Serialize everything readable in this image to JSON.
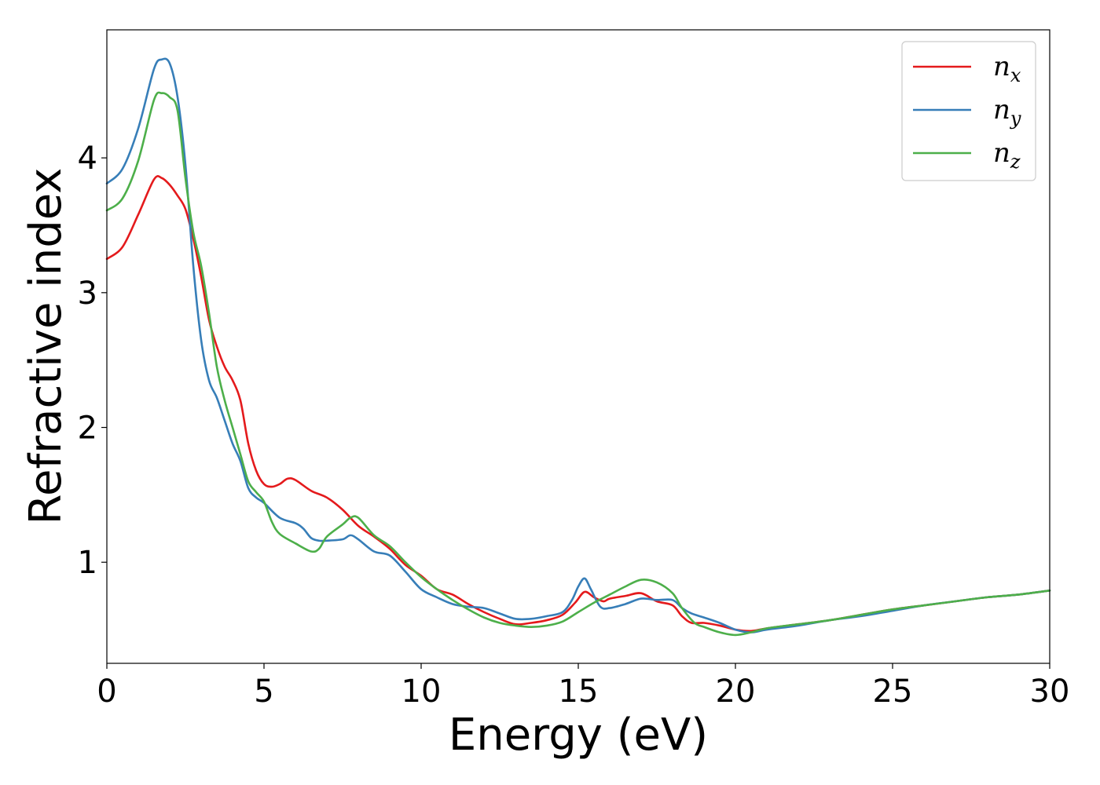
{
  "chart_data": {
    "type": "line",
    "xlabel": "Energy (eV)",
    "ylabel": "Refractive index",
    "xlim": [
      0,
      30
    ],
    "ylim": [
      0.25,
      4.95
    ],
    "x_ticks": [
      0,
      5,
      10,
      15,
      20,
      25,
      30
    ],
    "y_ticks": [
      1,
      2,
      3,
      4
    ],
    "x_tick_labels": [
      "0",
      "5",
      "10",
      "15",
      "20",
      "25",
      "30"
    ],
    "y_tick_labels": [
      "1",
      "2",
      "3",
      "4"
    ],
    "grid": false,
    "legend_position": "top-right",
    "series": [
      {
        "name": "n_x",
        "name_main": "n",
        "name_sub": "x",
        "color": "#e41a1c",
        "points": [
          [
            0,
            3.25
          ],
          [
            0.5,
            3.34
          ],
          [
            1.0,
            3.58
          ],
          [
            1.5,
            3.84
          ],
          [
            1.75,
            3.85
          ],
          [
            2.0,
            3.8
          ],
          [
            2.25,
            3.72
          ],
          [
            2.5,
            3.62
          ],
          [
            2.75,
            3.4
          ],
          [
            3.0,
            3.12
          ],
          [
            3.25,
            2.8
          ],
          [
            3.5,
            2.6
          ],
          [
            3.75,
            2.45
          ],
          [
            4.0,
            2.35
          ],
          [
            4.25,
            2.2
          ],
          [
            4.5,
            1.88
          ],
          [
            4.75,
            1.68
          ],
          [
            5.0,
            1.58
          ],
          [
            5.25,
            1.56
          ],
          [
            5.5,
            1.58
          ],
          [
            5.75,
            1.62
          ],
          [
            6.0,
            1.61
          ],
          [
            6.5,
            1.53
          ],
          [
            7.0,
            1.48
          ],
          [
            7.5,
            1.39
          ],
          [
            8.0,
            1.27
          ],
          [
            8.5,
            1.19
          ],
          [
            9.0,
            1.1
          ],
          [
            9.5,
            0.98
          ],
          [
            10.0,
            0.9
          ],
          [
            10.5,
            0.8
          ],
          [
            11.0,
            0.76
          ],
          [
            11.5,
            0.69
          ],
          [
            12.0,
            0.63
          ],
          [
            12.5,
            0.58
          ],
          [
            13.0,
            0.54
          ],
          [
            13.5,
            0.55
          ],
          [
            14.0,
            0.57
          ],
          [
            14.5,
            0.61
          ],
          [
            14.9,
            0.7
          ],
          [
            15.2,
            0.78
          ],
          [
            15.5,
            0.74
          ],
          [
            15.8,
            0.71
          ],
          [
            16.0,
            0.73
          ],
          [
            16.5,
            0.75
          ],
          [
            17.0,
            0.77
          ],
          [
            17.5,
            0.71
          ],
          [
            18.0,
            0.68
          ],
          [
            18.3,
            0.6
          ],
          [
            18.6,
            0.55
          ],
          [
            19.0,
            0.55
          ],
          [
            19.5,
            0.53
          ],
          [
            20.0,
            0.5
          ],
          [
            20.5,
            0.49
          ],
          [
            21.0,
            0.51
          ],
          [
            22.0,
            0.54
          ],
          [
            23.0,
            0.57
          ],
          [
            24.0,
            0.61
          ],
          [
            25.0,
            0.65
          ],
          [
            26.0,
            0.68
          ],
          [
            27.0,
            0.71
          ],
          [
            28.0,
            0.74
          ],
          [
            29.0,
            0.76
          ],
          [
            30.0,
            0.79
          ]
        ]
      },
      {
        "name": "n_y",
        "name_main": "n",
        "name_sub": "y",
        "color": "#377eb8",
        "points": [
          [
            0,
            3.81
          ],
          [
            0.5,
            3.92
          ],
          [
            1.0,
            4.22
          ],
          [
            1.5,
            4.66
          ],
          [
            1.75,
            4.73
          ],
          [
            2.0,
            4.7
          ],
          [
            2.25,
            4.45
          ],
          [
            2.5,
            3.95
          ],
          [
            2.75,
            3.2
          ],
          [
            3.0,
            2.65
          ],
          [
            3.25,
            2.35
          ],
          [
            3.5,
            2.22
          ],
          [
            3.75,
            2.05
          ],
          [
            4.0,
            1.88
          ],
          [
            4.25,
            1.75
          ],
          [
            4.5,
            1.55
          ],
          [
            4.75,
            1.48
          ],
          [
            5.0,
            1.44
          ],
          [
            5.5,
            1.33
          ],
          [
            6.0,
            1.29
          ],
          [
            6.25,
            1.25
          ],
          [
            6.5,
            1.18
          ],
          [
            6.75,
            1.16
          ],
          [
            7.0,
            1.16
          ],
          [
            7.5,
            1.17
          ],
          [
            7.75,
            1.2
          ],
          [
            8.0,
            1.17
          ],
          [
            8.5,
            1.08
          ],
          [
            9.0,
            1.05
          ],
          [
            9.5,
            0.93
          ],
          [
            10.0,
            0.8
          ],
          [
            10.5,
            0.74
          ],
          [
            11.0,
            0.69
          ],
          [
            11.5,
            0.67
          ],
          [
            12.0,
            0.66
          ],
          [
            12.5,
            0.62
          ],
          [
            13.0,
            0.58
          ],
          [
            13.5,
            0.58
          ],
          [
            14.0,
            0.6
          ],
          [
            14.5,
            0.63
          ],
          [
            14.8,
            0.72
          ],
          [
            15.0,
            0.82
          ],
          [
            15.2,
            0.88
          ],
          [
            15.4,
            0.8
          ],
          [
            15.7,
            0.67
          ],
          [
            16.0,
            0.66
          ],
          [
            16.5,
            0.69
          ],
          [
            17.0,
            0.73
          ],
          [
            17.5,
            0.72
          ],
          [
            18.0,
            0.72
          ],
          [
            18.3,
            0.66
          ],
          [
            18.6,
            0.62
          ],
          [
            19.0,
            0.59
          ],
          [
            19.5,
            0.55
          ],
          [
            20.0,
            0.5
          ],
          [
            20.5,
            0.48
          ],
          [
            21.0,
            0.5
          ],
          [
            22.0,
            0.53
          ],
          [
            23.0,
            0.57
          ],
          [
            24.0,
            0.6
          ],
          [
            25.0,
            0.64
          ],
          [
            26.0,
            0.68
          ],
          [
            27.0,
            0.71
          ],
          [
            28.0,
            0.74
          ],
          [
            29.0,
            0.76
          ],
          [
            30.0,
            0.79
          ]
        ]
      },
      {
        "name": "n_z",
        "name_main": "n",
        "name_sub": "z",
        "color": "#4daf4a",
        "points": [
          [
            0,
            3.61
          ],
          [
            0.5,
            3.7
          ],
          [
            1.0,
            3.98
          ],
          [
            1.5,
            4.43
          ],
          [
            1.75,
            4.48
          ],
          [
            2.0,
            4.45
          ],
          [
            2.25,
            4.35
          ],
          [
            2.5,
            3.85
          ],
          [
            2.75,
            3.45
          ],
          [
            3.0,
            3.2
          ],
          [
            3.25,
            2.85
          ],
          [
            3.5,
            2.45
          ],
          [
            3.75,
            2.2
          ],
          [
            4.0,
            2.0
          ],
          [
            4.25,
            1.8
          ],
          [
            4.5,
            1.6
          ],
          [
            4.75,
            1.52
          ],
          [
            5.0,
            1.45
          ],
          [
            5.25,
            1.3
          ],
          [
            5.5,
            1.21
          ],
          [
            6.0,
            1.14
          ],
          [
            6.5,
            1.08
          ],
          [
            6.75,
            1.1
          ],
          [
            7.0,
            1.19
          ],
          [
            7.5,
            1.28
          ],
          [
            7.75,
            1.33
          ],
          [
            8.0,
            1.33
          ],
          [
            8.5,
            1.2
          ],
          [
            9.0,
            1.12
          ],
          [
            9.5,
            1.0
          ],
          [
            10.0,
            0.89
          ],
          [
            10.5,
            0.8
          ],
          [
            11.0,
            0.72
          ],
          [
            11.5,
            0.65
          ],
          [
            12.0,
            0.59
          ],
          [
            12.5,
            0.55
          ],
          [
            13.0,
            0.53
          ],
          [
            13.5,
            0.52
          ],
          [
            14.0,
            0.53
          ],
          [
            14.5,
            0.56
          ],
          [
            15.0,
            0.63
          ],
          [
            15.5,
            0.7
          ],
          [
            16.0,
            0.76
          ],
          [
            16.5,
            0.82
          ],
          [
            17.0,
            0.87
          ],
          [
            17.5,
            0.85
          ],
          [
            18.0,
            0.77
          ],
          [
            18.3,
            0.66
          ],
          [
            18.7,
            0.55
          ],
          [
            19.0,
            0.52
          ],
          [
            19.5,
            0.48
          ],
          [
            20.0,
            0.46
          ],
          [
            20.5,
            0.48
          ],
          [
            21.0,
            0.51
          ],
          [
            22.0,
            0.54
          ],
          [
            23.0,
            0.57
          ],
          [
            24.0,
            0.61
          ],
          [
            25.0,
            0.65
          ],
          [
            26.0,
            0.68
          ],
          [
            27.0,
            0.71
          ],
          [
            28.0,
            0.74
          ],
          [
            29.0,
            0.76
          ],
          [
            30.0,
            0.79
          ]
        ]
      }
    ]
  }
}
